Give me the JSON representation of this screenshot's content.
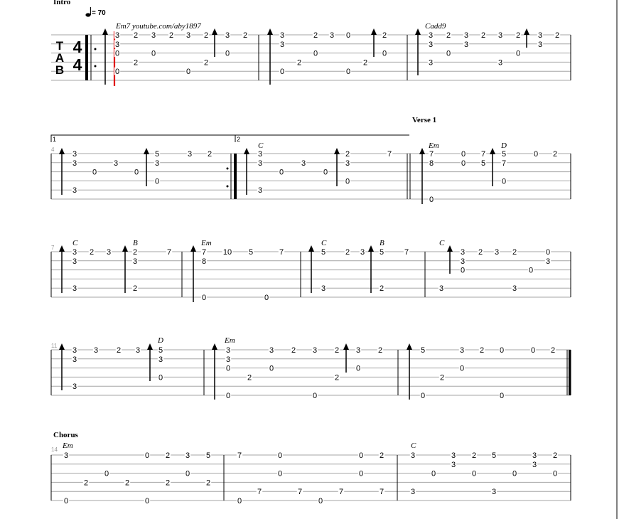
{
  "tempo": {
    "label": "= 70"
  },
  "clef_letters": [
    "T",
    "A",
    "B"
  ],
  "time_signature": {
    "top": "4",
    "bottom": "4"
  },
  "sections": [
    {
      "label": "Intro"
    },
    {
      "label": "Verse 1"
    },
    {
      "label": "Chorus"
    }
  ],
  "volta": {
    "first": "1",
    "second": "2"
  },
  "systems": [
    {
      "measure_number": "",
      "notes": [
        [
          "165",
          "0",
          "3"
        ],
        [
          "165",
          "1",
          "3"
        ],
        [
          "165",
          "2",
          "0"
        ],
        [
          "165",
          "4",
          "0"
        ],
        [
          "191",
          "0",
          "2"
        ],
        [
          "191",
          "3",
          "2"
        ],
        [
          "216",
          "0",
          "3"
        ],
        [
          "216",
          "2",
          "0"
        ],
        [
          "241",
          "0",
          "2"
        ],
        [
          "265",
          "0",
          "3"
        ],
        [
          "265",
          "4",
          "0"
        ],
        [
          "290",
          "0",
          "2"
        ],
        [
          "290",
          "3",
          "2"
        ],
        [
          "320",
          "0",
          "3"
        ],
        [
          "320",
          "2",
          "0"
        ],
        [
          "345",
          "0",
          "2"
        ],
        [
          "397",
          "0",
          "3"
        ],
        [
          "397",
          "1",
          "3"
        ],
        [
          "397",
          "4",
          "0"
        ],
        [
          "421",
          "3",
          "2"
        ],
        [
          "444",
          "0",
          "2"
        ],
        [
          "444",
          "2",
          "0"
        ],
        [
          "467",
          "0",
          "3"
        ],
        [
          "490",
          "0",
          "0"
        ],
        [
          "490",
          "4",
          "0"
        ],
        [
          "514",
          "3",
          "2"
        ],
        [
          "541",
          "0",
          "2"
        ],
        [
          "541",
          "2",
          "0"
        ],
        [
          "606",
          "0",
          "3"
        ],
        [
          "606",
          "1",
          "3"
        ],
        [
          "606",
          "3",
          "3"
        ],
        [
          "631",
          "0",
          "2"
        ],
        [
          "631",
          "2",
          "0"
        ],
        [
          "656",
          "0",
          "3"
        ],
        [
          "656",
          "1",
          "3"
        ],
        [
          "680",
          "0",
          "2"
        ],
        [
          "704",
          "0",
          "3"
        ],
        [
          "704",
          "3",
          "3"
        ],
        [
          "729",
          "0",
          "2"
        ],
        [
          "729",
          "2",
          "0"
        ],
        [
          "760",
          "0",
          "3"
        ],
        [
          "760",
          "1",
          "3"
        ],
        [
          "784",
          "0",
          "2"
        ]
      ],
      "chords": [
        [
          "163",
          "Em7 youtube.com/aby1897"
        ],
        [
          "598",
          "Cadd9"
        ]
      ]
    },
    {
      "measure_number": "4",
      "notes": [
        [
          "105",
          "0",
          "3"
        ],
        [
          "105",
          "1",
          "3"
        ],
        [
          "105",
          "4",
          "3"
        ],
        [
          "133",
          "2",
          "0"
        ],
        [
          "163",
          "1",
          "3"
        ],
        [
          "192",
          "2",
          "0"
        ],
        [
          "221",
          "0",
          "5"
        ],
        [
          "221",
          "1",
          "3"
        ],
        [
          "221",
          "3",
          "0"
        ],
        [
          "267",
          "0",
          "3"
        ],
        [
          "295",
          "0",
          "2"
        ],
        [
          "366",
          "0",
          "3"
        ],
        [
          "366",
          "1",
          "3"
        ],
        [
          "366",
          "4",
          "3"
        ],
        [
          "396",
          "2",
          "0"
        ],
        [
          "427",
          "1",
          "3"
        ],
        [
          "458",
          "2",
          "0"
        ],
        [
          "489",
          "0",
          "2"
        ],
        [
          "489",
          "1",
          "3"
        ],
        [
          "489",
          "3",
          "0"
        ],
        [
          "548",
          "0",
          "7"
        ],
        [
          "607",
          "0",
          "7"
        ],
        [
          "607",
          "1",
          "8"
        ],
        [
          "607",
          "5",
          "0"
        ],
        [
          "652",
          "0",
          "0"
        ],
        [
          "652",
          "1",
          "0"
        ],
        [
          "680",
          "0",
          "7"
        ],
        [
          "680",
          "1",
          "5"
        ],
        [
          "709",
          "0",
          "5"
        ],
        [
          "709",
          "1",
          "7"
        ],
        [
          "709",
          "3",
          "0"
        ],
        [
          "754",
          "0",
          "0"
        ],
        [
          "781",
          "0",
          "2"
        ]
      ],
      "chords": [
        [
          "363",
          "C"
        ],
        [
          "603",
          "Em"
        ],
        [
          "705",
          "D"
        ]
      ]
    },
    {
      "measure_number": "7",
      "notes": [
        [
          "105",
          "0",
          "3"
        ],
        [
          "105",
          "1",
          "3"
        ],
        [
          "105",
          "4",
          "3"
        ],
        [
          "129",
          "0",
          "2"
        ],
        [
          "153",
          "0",
          "3"
        ],
        [
          "190",
          "0",
          "2"
        ],
        [
          "190",
          "1",
          "3"
        ],
        [
          "190",
          "4",
          "2"
        ],
        [
          "238",
          "0",
          "7"
        ],
        [
          "287",
          "0",
          "7"
        ],
        [
          "287",
          "1",
          "8"
        ],
        [
          "287",
          "5",
          "0"
        ],
        [
          "320",
          "0",
          "10"
        ],
        [
          "353",
          "0",
          "5"
        ],
        [
          "375",
          "5",
          "0"
        ],
        [
          "396",
          "0",
          "7"
        ],
        [
          "455",
          "0",
          "5"
        ],
        [
          "455",
          "4",
          "3"
        ],
        [
          "489",
          "0",
          "2"
        ],
        [
          "510",
          "0",
          "3"
        ],
        [
          "537",
          "0",
          "5"
        ],
        [
          "537",
          "4",
          "2"
        ],
        [
          "572",
          "0",
          "7"
        ],
        [
          "621",
          "4",
          "3"
        ],
        [
          "651",
          "0",
          "3"
        ],
        [
          "651",
          "1",
          "3"
        ],
        [
          "651",
          "2",
          "0"
        ],
        [
          "676",
          "0",
          "2"
        ],
        [
          "699",
          "0",
          "3"
        ],
        [
          "724",
          "0",
          "2"
        ],
        [
          "724",
          "4",
          "3"
        ],
        [
          "747",
          "2",
          "0"
        ],
        [
          "771",
          "0",
          "0"
        ],
        [
          "771",
          "1",
          "3"
        ]
      ],
      "chords": [
        [
          "102",
          "C"
        ],
        [
          "187",
          "B"
        ],
        [
          "283",
          "Em"
        ],
        [
          "452",
          "C"
        ],
        [
          "534",
          "B"
        ],
        [
          "618",
          "C"
        ]
      ]
    },
    {
      "measure_number": "11",
      "notes": [
        [
          "105",
          "0",
          "3"
        ],
        [
          "105",
          "1",
          "3"
        ],
        [
          "105",
          "4",
          "3"
        ],
        [
          "135",
          "0",
          "3"
        ],
        [
          "167",
          "0",
          "2"
        ],
        [
          "194",
          "0",
          "3"
        ],
        [
          "226",
          "0",
          "5"
        ],
        [
          "226",
          "1",
          "3"
        ],
        [
          "226",
          "3",
          "0"
        ],
        [
          "321",
          "0",
          "3"
        ],
        [
          "321",
          "1",
          "3"
        ],
        [
          "321",
          "2",
          "0"
        ],
        [
          "321",
          "5",
          "0"
        ],
        [
          "351",
          "3",
          "2"
        ],
        [
          "382",
          "0",
          "3"
        ],
        [
          "382",
          "2",
          "0"
        ],
        [
          "413",
          "0",
          "2"
        ],
        [
          "443",
          "0",
          "3"
        ],
        [
          "443",
          "5",
          "0"
        ],
        [
          "474",
          "0",
          "2"
        ],
        [
          "474",
          "3",
          "2"
        ],
        [
          "504",
          "0",
          "3"
        ],
        [
          "504",
          "2",
          "0"
        ],
        [
          "535",
          "0",
          "2"
        ],
        [
          "595",
          "0",
          "5"
        ],
        [
          "595",
          "5",
          "0"
        ],
        [
          "622",
          "3",
          "2"
        ],
        [
          "650",
          "0",
          "3"
        ],
        [
          "650",
          "2",
          "0"
        ],
        [
          "678",
          "0",
          "2"
        ],
        [
          "706",
          "0",
          "0"
        ],
        [
          "706",
          "5",
          "0"
        ],
        [
          "750",
          "0",
          "0"
        ],
        [
          "778",
          "0",
          "2"
        ]
      ],
      "chords": [
        [
          "222",
          "D"
        ],
        [
          "316",
          "Em"
        ]
      ]
    },
    {
      "measure_number": "14",
      "notes": [
        [
          "93",
          "0",
          "3"
        ],
        [
          "93",
          "5",
          "0"
        ],
        [
          "121",
          "3",
          "2"
        ],
        [
          "150",
          "2",
          "0"
        ],
        [
          "179",
          "3",
          "2"
        ],
        [
          "207",
          "0",
          "0"
        ],
        [
          "207",
          "5",
          "0"
        ],
        [
          "236",
          "0",
          "2"
        ],
        [
          "236",
          "3",
          "2"
        ],
        [
          "264",
          "0",
          "3"
        ],
        [
          "264",
          "2",
          "0"
        ],
        [
          "293",
          "0",
          "5"
        ],
        [
          "293",
          "3",
          "2"
        ],
        [
          "337",
          "0",
          "7"
        ],
        [
          "337",
          "5",
          "0"
        ],
        [
          "365",
          "4",
          "7"
        ],
        [
          "394",
          "0",
          "0"
        ],
        [
          "394",
          "2",
          "0"
        ],
        [
          "422",
          "4",
          "7"
        ],
        [
          "451",
          "5",
          "0"
        ],
        [
          "480",
          "4",
          "7"
        ],
        [
          "508",
          "0",
          "0"
        ],
        [
          "508",
          "2",
          "0"
        ],
        [
          "537",
          "0",
          "2"
        ],
        [
          "537",
          "4",
          "7"
        ],
        [
          "581",
          "0",
          "3"
        ],
        [
          "581",
          "4",
          "3"
        ],
        [
          "610",
          "2",
          "0"
        ],
        [
          "638",
          "0",
          "3"
        ],
        [
          "638",
          "1",
          "3"
        ],
        [
          "667",
          "0",
          "2"
        ],
        [
          "667",
          "2",
          "0"
        ],
        [
          "695",
          "0",
          "5"
        ],
        [
          "695",
          "4",
          "3"
        ],
        [
          "724",
          "2",
          "0"
        ],
        [
          "752",
          "0",
          "3"
        ],
        [
          "752",
          "1",
          "3"
        ],
        [
          "781",
          "0",
          "2"
        ],
        [
          "781",
          "2",
          "0"
        ]
      ],
      "chords": [
        [
          "88",
          "Em"
        ],
        [
          "578",
          "C"
        ]
      ]
    }
  ]
}
